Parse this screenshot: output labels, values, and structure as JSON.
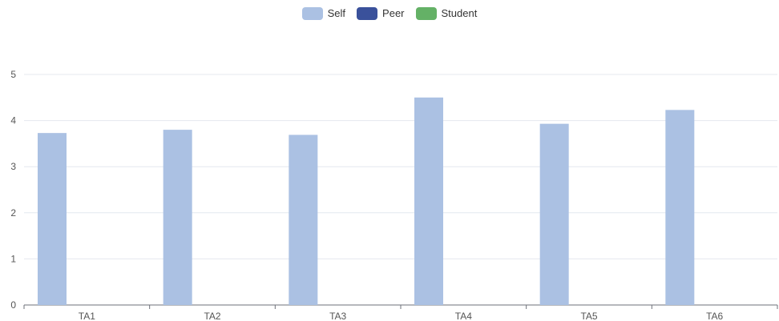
{
  "chart_data": {
    "type": "bar",
    "categories": [
      "TA1",
      "TA2",
      "TA3",
      "TA4",
      "TA5",
      "TA6"
    ],
    "series": [
      {
        "name": "Self",
        "values": [
          3.73,
          3.8,
          3.69,
          4.5,
          3.93,
          4.23
        ],
        "color": "#abc1e3"
      },
      {
        "name": "Peer",
        "values": [
          null,
          null,
          null,
          null,
          null,
          null
        ],
        "color": "#3a519b"
      },
      {
        "name": "Student",
        "values": [
          null,
          null,
          null,
          null,
          null,
          null
        ],
        "color": "#64b166"
      }
    ],
    "ylim": [
      0,
      5
    ],
    "yticks": [
      0,
      1,
      2,
      3,
      4,
      5
    ],
    "grid": true,
    "legend_position": "top-center",
    "title": "",
    "xlabel": "",
    "ylabel": ""
  }
}
